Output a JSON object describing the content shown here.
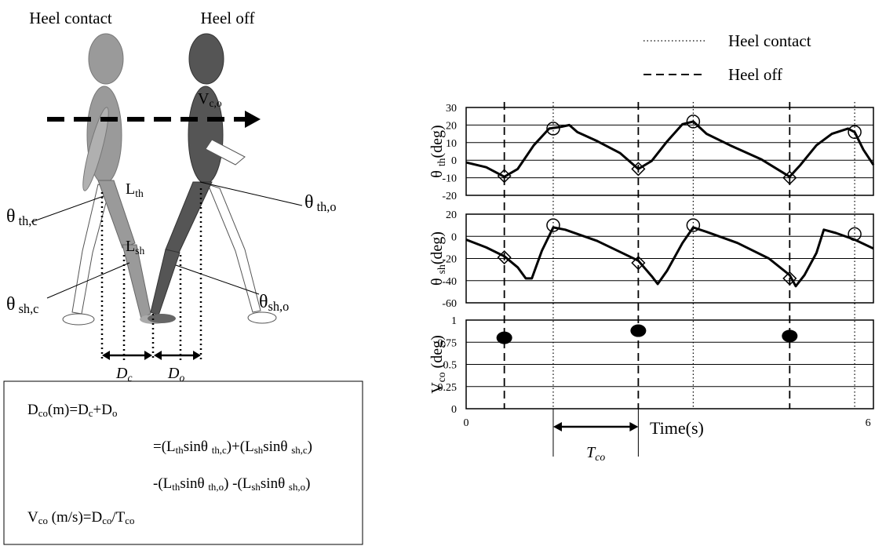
{
  "header": {
    "heel_contact": "Heel contact",
    "heel_off": "Heel off"
  },
  "diagram": {
    "v_co": [
      "V",
      "c,o"
    ],
    "l_th": [
      "L",
      "th"
    ],
    "l_sh": [
      "L",
      "sh"
    ],
    "theta_th_c": [
      "θ",
      "  th,c"
    ],
    "theta_th_o": [
      "θ",
      "  th,o"
    ],
    "theta_sh_c": [
      "θ",
      "  sh,c"
    ],
    "theta_sh_o": [
      "θ",
      "sh,o"
    ],
    "d_c": [
      "D",
      "c"
    ],
    "d_o": [
      "D",
      "o"
    ]
  },
  "formula": [
    [
      "D",
      "co",
      "(m)=D",
      "c",
      "+D",
      "o"
    ],
    [
      "=(L",
      "th",
      "sinθ ",
      " th,c",
      ")+(L",
      "sh",
      "sinθ ",
      " sh,c",
      ")"
    ],
    [
      "-(L",
      "th",
      "sinθ ",
      " th,o",
      ") -(L",
      "sh",
      "sinθ ",
      " sh,o",
      ")"
    ],
    [
      "V",
      "co",
      " (m/s)=D",
      "co",
      "/T",
      "co"
    ]
  ],
  "legend": [
    {
      "name": "Heel contact",
      "style": "dotted",
      "x": [
        1.3,
        3.39,
        5.8
      ]
    },
    {
      "name": "Heel off",
      "style": "dashed",
      "x": [
        0.57,
        2.57,
        4.83
      ]
    }
  ],
  "annotation": {
    "label": [
      "T",
      "co"
    ],
    "x": [
      1.3,
      2.57
    ]
  },
  "chart_data": [
    {
      "type": "line",
      "ylabel": [
        "θ ",
        "th",
        "(deg)"
      ],
      "color": "#000000",
      "xlim": [
        0,
        6.08
      ],
      "ylim": [
        -20,
        30
      ],
      "yticks": [
        -20,
        -10,
        0,
        10,
        20,
        30
      ],
      "x": [
        0,
        0.3,
        0.57,
        0.77,
        1.01,
        1.24,
        1.42,
        1.54,
        1.66,
        1.95,
        2.3,
        2.57,
        2.77,
        3.0,
        3.23,
        3.39,
        3.59,
        3.94,
        4.41,
        4.83,
        4.99,
        5.23,
        5.46,
        5.7,
        5.8,
        5.93,
        6.08
      ],
      "values": [
        -1.3,
        -4,
        -9.4,
        -5,
        8.5,
        18,
        19,
        20,
        16,
        11,
        4,
        -5,
        -0.4,
        10.7,
        20.5,
        22,
        15,
        8.5,
        0.4,
        -9.4,
        -2.7,
        8.5,
        15,
        18,
        16,
        6,
        -2.7
      ],
      "diamonds": {
        "x": [
          0.57,
          2.57,
          4.83
        ],
        "values": [
          -9,
          -5,
          -10
        ]
      },
      "circles": {
        "x": [
          1.3,
          3.39,
          5.8
        ],
        "values": [
          18,
          22,
          16
        ]
      }
    },
    {
      "type": "line",
      "ylabel": [
        "θ ",
        "sh",
        "(deg)"
      ],
      "color": "#000000",
      "xlim": [
        0,
        6.08
      ],
      "ylim": [
        -60,
        20
      ],
      "yticks": [
        -60,
        -40,
        -20,
        0,
        20
      ],
      "x": [
        0,
        0.3,
        0.57,
        0.77,
        0.89,
        0.98,
        1.13,
        1.3,
        1.48,
        1.95,
        2.57,
        2.77,
        2.86,
        3.0,
        3.23,
        3.39,
        3.59,
        4.05,
        4.52,
        4.83,
        4.92,
        5.05,
        5.23,
        5.34,
        5.52,
        5.8,
        6.08
      ],
      "values": [
        -3,
        -10,
        -18,
        -28,
        -38,
        -38,
        -13,
        8,
        6,
        -4,
        -22,
        -36,
        -43,
        -31,
        -6,
        8,
        4,
        -6,
        -20,
        -35,
        -45,
        -35,
        -15,
        6,
        3,
        -3,
        -11
      ],
      "diamonds": {
        "x": [
          0.57,
          2.57,
          4.83
        ],
        "values": [
          -19,
          -24,
          -38
        ]
      },
      "circles": {
        "x": [
          1.3,
          3.39,
          5.8
        ],
        "values": [
          10,
          10,
          2
        ]
      }
    },
    {
      "type": "scatter",
      "ylabel": [
        "V",
        "co",
        " (deg)"
      ],
      "color": "#000000",
      "xlim": [
        0,
        6.08
      ],
      "ylim": [
        0,
        1
      ],
      "yticks": [
        0,
        0.25,
        0.5,
        0.75,
        1
      ],
      "xticks": [
        0,
        6
      ],
      "xlabel": "Time(s)",
      "x": [
        0.57,
        2.57,
        4.83
      ],
      "values": [
        0.8,
        0.88,
        0.82
      ]
    }
  ]
}
